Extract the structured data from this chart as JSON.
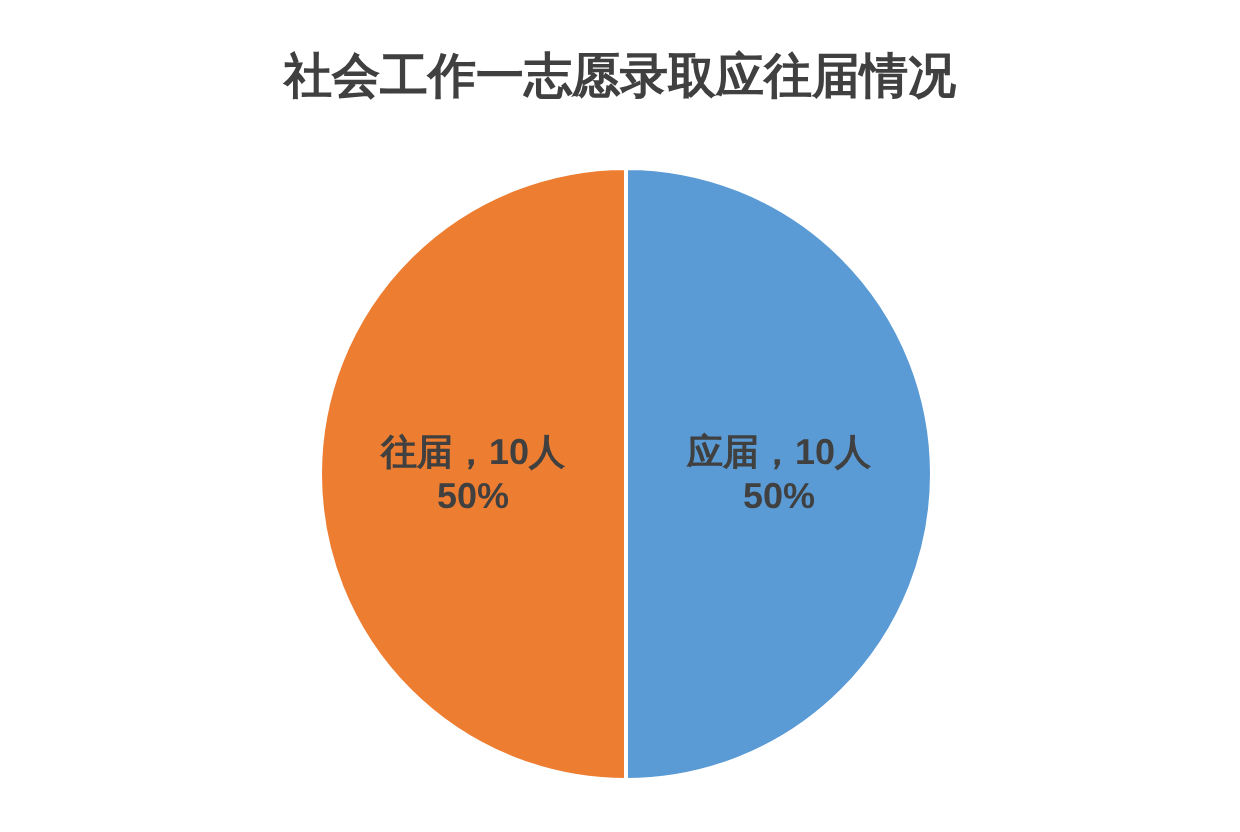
{
  "chart_data": {
    "type": "pie",
    "title": "社会工作一志愿录取应往届情况",
    "categories": [
      "应届",
      "往届"
    ],
    "values": [
      10,
      10
    ],
    "colors": [
      "#5b9bd5",
      "#ed7d31"
    ],
    "value_labels": [
      "，10人\n50%",
      "，10人\n50%"
    ],
    "legend": false
  }
}
